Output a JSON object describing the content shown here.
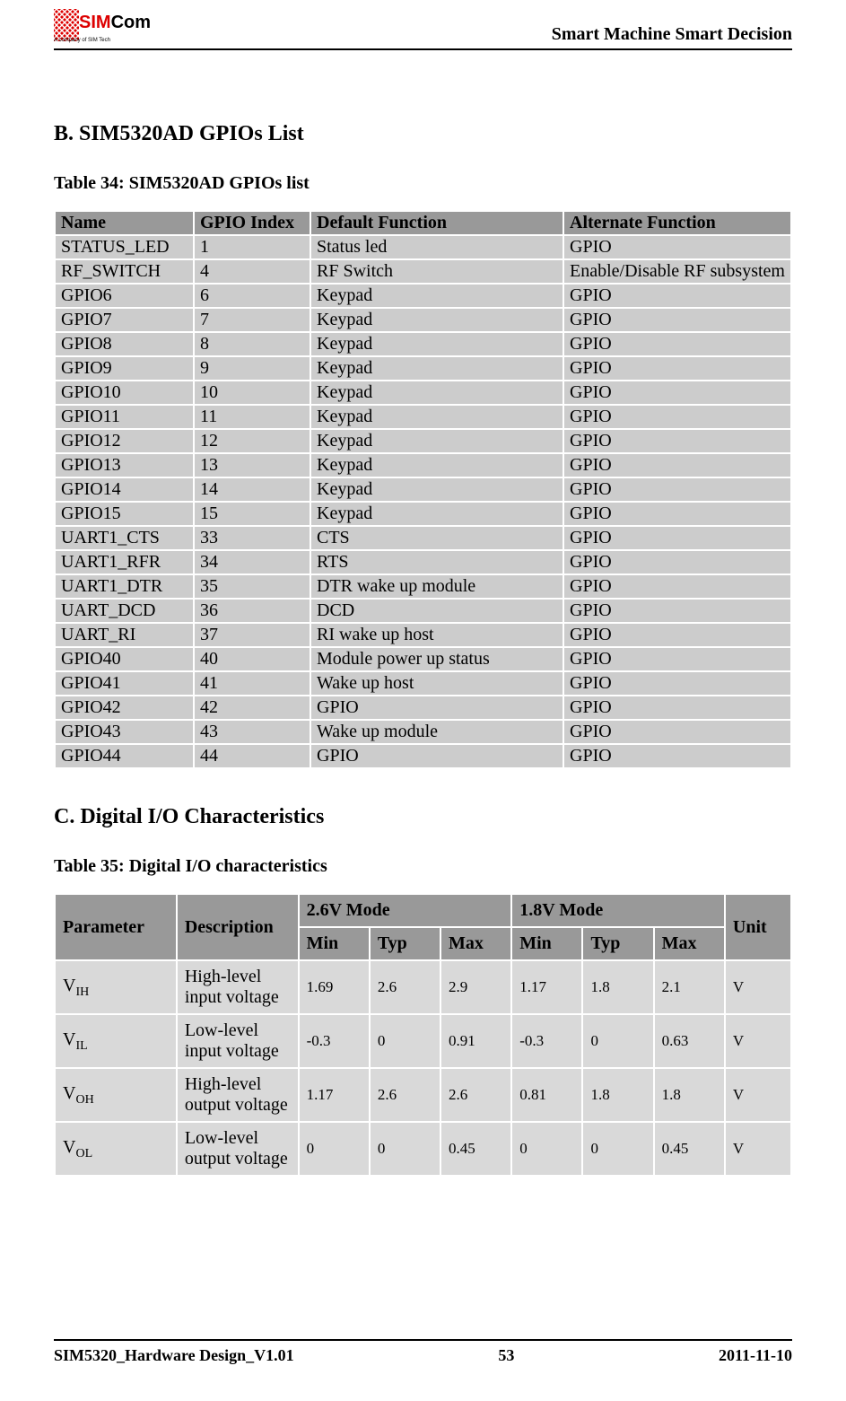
{
  "header": {
    "logo_main": "Com",
    "logo_prefix": "SIM",
    "logo_sub": "A company of SIM Tech",
    "tagline": "Smart Machine Smart Decision"
  },
  "section_b": {
    "title": "B. SIM5320AD GPIOs List",
    "table_caption": "Table 34: SIM5320AD GPIOs list",
    "columns": [
      "Name",
      "GPIO Index",
      "Default Function",
      "Alternate Function"
    ],
    "rows": [
      [
        "STATUS_LED",
        "1",
        "Status led",
        "GPIO"
      ],
      [
        "RF_SWITCH",
        "4",
        "RF Switch",
        "Enable/Disable RF subsystem"
      ],
      [
        "GPIO6",
        "6",
        "Keypad",
        "GPIO"
      ],
      [
        "GPIO7",
        "7",
        "Keypad",
        "GPIO"
      ],
      [
        "GPIO8",
        "8",
        "Keypad",
        "GPIO"
      ],
      [
        "GPIO9",
        "9",
        "Keypad",
        "GPIO"
      ],
      [
        "GPIO10",
        "10",
        "Keypad",
        "GPIO"
      ],
      [
        "GPIO11",
        "11",
        "Keypad",
        "GPIO"
      ],
      [
        "GPIO12",
        "12",
        "Keypad",
        "GPIO"
      ],
      [
        "GPIO13",
        "13",
        "Keypad",
        "GPIO"
      ],
      [
        "GPIO14",
        "14",
        "Keypad",
        "GPIO"
      ],
      [
        "GPIO15",
        "15",
        "Keypad",
        "GPIO"
      ],
      [
        "UART1_CTS",
        "33",
        "CTS",
        "GPIO"
      ],
      [
        "UART1_RFR",
        "34",
        "RTS",
        "GPIO"
      ],
      [
        "UART1_DTR",
        "35",
        "DTR wake up module",
        "GPIO"
      ],
      [
        "UART_DCD",
        "36",
        "DCD",
        "GPIO"
      ],
      [
        "UART_RI",
        "37",
        "RI wake up host",
        "GPIO"
      ],
      [
        "GPIO40",
        "40",
        "Module power up status",
        "GPIO"
      ],
      [
        "GPIO41",
        "41",
        "Wake up host",
        "GPIO"
      ],
      [
        "GPIO42",
        "42",
        "GPIO",
        "GPIO"
      ],
      [
        "GPIO43",
        "43",
        "Wake up module",
        "GPIO"
      ],
      [
        "GPIO44",
        "44",
        "GPIO",
        "GPIO"
      ]
    ]
  },
  "section_c": {
    "title": "C. Digital I/O Characteristics",
    "table_caption": "Table 35: Digital I/O characteristics",
    "header": {
      "parameter": "Parameter",
      "description": "Description",
      "mode26": "2.6V Mode",
      "mode18": "1.8V Mode",
      "unit": "Unit",
      "min": "Min",
      "typ": "Typ",
      "max": "Max"
    },
    "rows": [
      {
        "param_base": "V",
        "param_sub": "IH",
        "desc": "High-level input voltage",
        "m26": [
          "1.69",
          "2.6",
          "2.9"
        ],
        "m18": [
          "1.17",
          "1.8",
          "2.1"
        ],
        "unit": "V"
      },
      {
        "param_base": "V",
        "param_sub": "IL",
        "desc": "Low-level input voltage",
        "m26": [
          "-0.3",
          "0",
          "0.91"
        ],
        "m18": [
          "-0.3",
          "0",
          "0.63"
        ],
        "unit": "V"
      },
      {
        "param_base": "V",
        "param_sub": "OH",
        "desc": "High-level output voltage",
        "m26": [
          "1.17",
          "2.6",
          "2.6"
        ],
        "m18": [
          "0.81",
          "1.8",
          "1.8"
        ],
        "unit": "V"
      },
      {
        "param_base": "V",
        "param_sub": "OL",
        "desc": "Low-level output voltage",
        "m26": [
          "0",
          "0",
          "0.45"
        ],
        "m18": [
          "0",
          "0",
          "0.45"
        ],
        "unit": "V"
      }
    ]
  },
  "footer": {
    "doc": "SIM5320_Hardware Design_V1.01",
    "page": "53",
    "date": "2011-11-10"
  },
  "styling": {
    "header_bg": "#999999",
    "row_bg": "#cccccc",
    "val_bg": "#d9d9d9",
    "text_color": "#000000",
    "page_bg": "#ffffff",
    "base_font_size_pt": 15,
    "header_font_size_pt": 15,
    "section_title_font_size_pt": 18
  }
}
